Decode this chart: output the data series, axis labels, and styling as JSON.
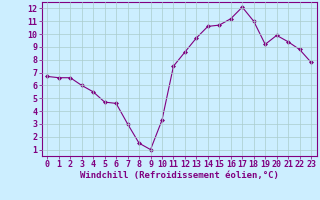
{
  "x": [
    0,
    1,
    2,
    3,
    4,
    5,
    6,
    7,
    8,
    9,
    10,
    11,
    12,
    13,
    14,
    15,
    16,
    17,
    18,
    19,
    20,
    21,
    22,
    23
  ],
  "y": [
    6.7,
    6.6,
    6.6,
    6.0,
    5.5,
    4.7,
    4.6,
    3.0,
    1.5,
    1.0,
    3.3,
    7.5,
    8.6,
    9.7,
    10.6,
    10.7,
    11.2,
    12.1,
    11.0,
    9.2,
    9.9,
    9.4,
    8.8,
    7.8
  ],
  "line_color": "#800080",
  "marker": "D",
  "marker_size": 2,
  "bg_color": "#cceeff",
  "grid_color": "#aacccc",
  "axis_color": "#800080",
  "xlabel": "Windchill (Refroidissement éolien,°C)",
  "xlim": [
    -0.5,
    23.5
  ],
  "ylim": [
    0.5,
    12.5
  ],
  "yticks": [
    1,
    2,
    3,
    4,
    5,
    6,
    7,
    8,
    9,
    10,
    11,
    12
  ],
  "xticks": [
    0,
    1,
    2,
    3,
    4,
    5,
    6,
    7,
    8,
    9,
    10,
    11,
    12,
    13,
    14,
    15,
    16,
    17,
    18,
    19,
    20,
    21,
    22,
    23
  ],
  "label_fontsize": 6.5,
  "tick_fontsize": 6.0
}
